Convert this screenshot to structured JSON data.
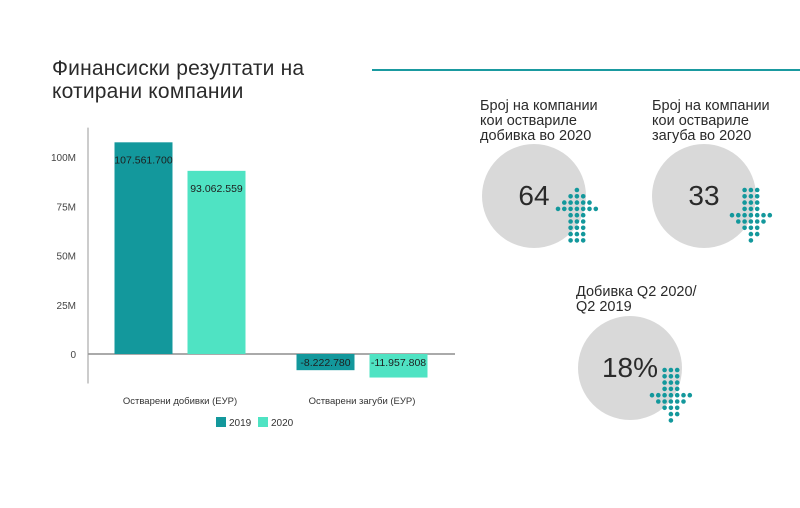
{
  "title": {
    "line1": "Финансиски резултати на",
    "line2": "котирани компании"
  },
  "colors": {
    "accent": "#1a9aa0",
    "series2019": "#13989c",
    "series2020": "#4fe3c3",
    "circle": "#d9d9d9",
    "arrow": "#13989c"
  },
  "chart_data": {
    "type": "bar",
    "categories": [
      "Остварени добивки (ЕУР)",
      "Остварени загуби (ЕУР)"
    ],
    "series": [
      {
        "name": "2019",
        "values": [
          107561700,
          -8222780
        ],
        "labels": [
          "107.561.700",
          "-8.222.780"
        ]
      },
      {
        "name": "2020",
        "values": [
          93062559,
          -11957808
        ],
        "labels": [
          "93.062.559",
          "-11.957.808"
        ]
      }
    ],
    "ylim": [
      -15000000,
      115000000
    ],
    "yticks": [
      0,
      25000000,
      50000000,
      75000000,
      100000000
    ],
    "yticklabels": [
      "0",
      "25M",
      "50M",
      "75M",
      "100M"
    ],
    "legend": "bottom"
  },
  "kpis": [
    {
      "label": [
        "Број на компании",
        "кои оствариле",
        "добивка во 2020"
      ],
      "value": "64",
      "arrow": "up",
      "arrow_icon": "dotted-up-arrow-icon"
    },
    {
      "label": [
        "Број на компании",
        "кои оствариле",
        "загуба во 2020"
      ],
      "value": "33",
      "arrow": "down",
      "arrow_icon": "dotted-down-arrow-icon"
    },
    {
      "label": [
        "Добивка Q2 2020/",
        "Q2 2019"
      ],
      "value": "18%",
      "arrow": "down",
      "arrow_icon": "dotted-down-arrow-icon"
    }
  ]
}
